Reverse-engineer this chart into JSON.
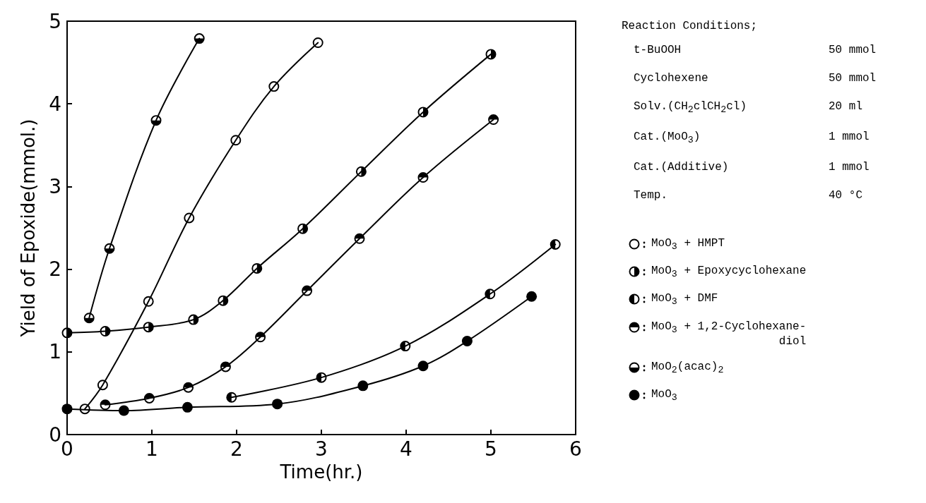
{
  "chart_data": {
    "type": "line",
    "xlabel": "Time(hr.)",
    "ylabel": "Yield of Epoxide(mmol.)",
    "xlim": [
      0,
      6
    ],
    "ylim": [
      0,
      5
    ],
    "xticks": [
      0,
      1,
      2,
      3,
      4,
      5,
      6
    ],
    "yticks": [
      0,
      1,
      2,
      3,
      4,
      5
    ],
    "grid": false,
    "legend": "right",
    "line_style": "solid",
    "annotations": [
      "Reaction Conditions;",
      "t-BuOOH",
      "50 mmol",
      "Cyclohexene",
      "50 mmol",
      "Solv.(CH$_{2}$clCH$_{2}$cl)",
      "20 ml",
      "Cat.(MoO$_{3}$)",
      "1 mmol",
      "Cat.(Additive)",
      "1 mmol",
      "Temp.",
      "40 °C"
    ],
    "series": [
      {
        "name": "MoO$_{3}$ + HMPT",
        "color": "#000000",
        "marker": "circle",
        "x": [
          0.21,
          0.42,
          0.96,
          1.44,
          1.99,
          2.44,
          2.96
        ],
        "values": [
          0.31,
          0.6,
          1.61,
          2.62,
          3.56,
          4.21,
          4.74
        ]
      },
      {
        "name": "MoO$_{3}$ + Epoxycyclohexane",
        "color": "#000000",
        "marker": "circle",
        "x": [
          0,
          0.45,
          0.96,
          1.49,
          1.84,
          2.24,
          2.78,
          3.47,
          4.2,
          5.0
        ],
        "values": [
          1.23,
          1.25,
          1.3,
          1.39,
          1.62,
          2.01,
          2.49,
          3.18,
          3.9,
          4.6
        ]
      },
      {
        "name": "MoO$_{3}$ + DMF",
        "color": "#000000",
        "marker": "circle",
        "x": [
          1.94,
          3.0,
          3.99,
          4.99,
          5.76
        ],
        "values": [
          0.45,
          0.69,
          1.07,
          1.7,
          2.3
        ]
      },
      {
        "name": "MoO$_{3}$ + 1,2-Cyclohexane-\ndiol",
        "color": "#000000",
        "marker": "circle",
        "x": [
          0.45,
          0.97,
          1.43,
          1.87,
          2.28,
          2.83,
          3.45,
          4.2,
          5.03
        ],
        "values": [
          0.36,
          0.44,
          0.57,
          0.82,
          1.18,
          1.74,
          2.37,
          3.11,
          3.81
        ]
      },
      {
        "name": "MoO$_{2}$(acac)$_{2}$",
        "color": "#000000",
        "marker": "circle",
        "x": [
          0.26,
          0.5,
          1.05,
          1.56
        ],
        "values": [
          1.41,
          2.25,
          3.8,
          4.79
        ]
      },
      {
        "name": "MoO$_{3}$",
        "color": "#000000",
        "marker": "circle",
        "x": [
          0,
          0.67,
          1.42,
          2.48,
          3.49,
          4.2,
          4.72,
          5.48
        ],
        "values": [
          0.31,
          0.29,
          0.33,
          0.37,
          0.59,
          0.83,
          1.13,
          1.67
        ]
      }
    ]
  }
}
